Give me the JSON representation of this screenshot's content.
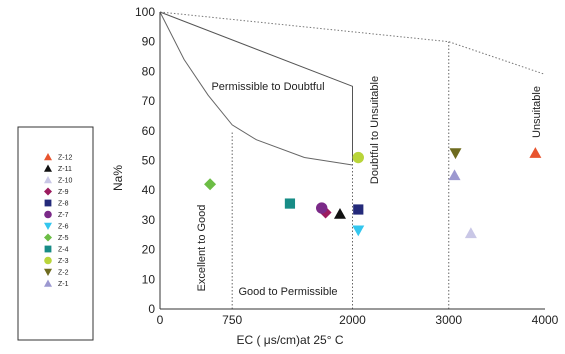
{
  "chart_data": {
    "type": "scatter",
    "xlabel": "EC ( μs/cm)at 25° C",
    "ylabel": "Na%",
    "xlim": [
      0,
      4000
    ],
    "ylim": [
      0,
      100
    ],
    "x_ticks": [
      0,
      750,
      2000,
      3000,
      4000
    ],
    "y_ticks": [
      0,
      10,
      20,
      30,
      40,
      50,
      60,
      70,
      80,
      90,
      100
    ],
    "grid": false,
    "legend_position": "left",
    "regions": [
      {
        "id": "excellent",
        "label": "Excellent to Good"
      },
      {
        "id": "good",
        "label": "Good to Permissible"
      },
      {
        "id": "permissible",
        "label": "Permissible to Doubtful"
      },
      {
        "id": "doubtful",
        "label": "Doubtful to Unsuitable"
      },
      {
        "id": "unsuitable",
        "label": "Unsuitable"
      }
    ],
    "boundaries": {
      "upper_curve": [
        [
          0,
          100
        ],
        [
          2000,
          75
        ],
        [
          2000,
          50
        ]
      ],
      "lower_curve": [
        [
          0,
          100
        ],
        [
          250,
          84
        ],
        [
          500,
          72
        ],
        [
          750,
          62
        ],
        [
          1000,
          57
        ],
        [
          1500,
          51
        ],
        [
          2000,
          48.5
        ]
      ],
      "dotted_top": [
        [
          0,
          100
        ],
        [
          3000,
          90
        ],
        [
          4000,
          79
        ]
      ],
      "dotted_verticals": [
        [
          750,
          0,
          60
        ],
        [
          2000,
          0,
          50
        ],
        [
          3000,
          0,
          90
        ]
      ]
    },
    "series": [
      {
        "name": "Z-12",
        "marker": "triangle-up",
        "color": "#e8542e",
        "x": 3900,
        "y": 52.5
      },
      {
        "name": "Z-11",
        "marker": "triangle-up",
        "color": "#111111",
        "x": 1870,
        "y": 32
      },
      {
        "name": "Z-10",
        "marker": "triangle-up",
        "color": "#c9c7e6",
        "x": 3230,
        "y": 25.5
      },
      {
        "name": "Z-9",
        "marker": "diamond",
        "color": "#9c1b5e",
        "x": 1720,
        "y": 32.5
      },
      {
        "name": "Z-8",
        "marker": "square",
        "color": "#242a7a",
        "x": 2060,
        "y": 33.5
      },
      {
        "name": "Z-7",
        "marker": "circle",
        "color": "#7b2a88",
        "x": 1680,
        "y": 34
      },
      {
        "name": "Z-6",
        "marker": "triangle-down",
        "color": "#33c6ee",
        "x": 2060,
        "y": 26.5
      },
      {
        "name": "Z-5",
        "marker": "diamond",
        "color": "#6cbd45",
        "x": 520,
        "y": 42
      },
      {
        "name": "Z-4",
        "marker": "square",
        "color": "#178c86",
        "x": 1350,
        "y": 35.5
      },
      {
        "name": "Z-3",
        "marker": "circle",
        "color": "#b9d53a",
        "x": 2060,
        "y": 51
      },
      {
        "name": "Z-2",
        "marker": "triangle-down",
        "color": "#6e6b1f",
        "x": 3070,
        "y": 52.5
      },
      {
        "name": "Z-1",
        "marker": "triangle-up",
        "color": "#9c98d0",
        "x": 3060,
        "y": 45
      }
    ]
  }
}
